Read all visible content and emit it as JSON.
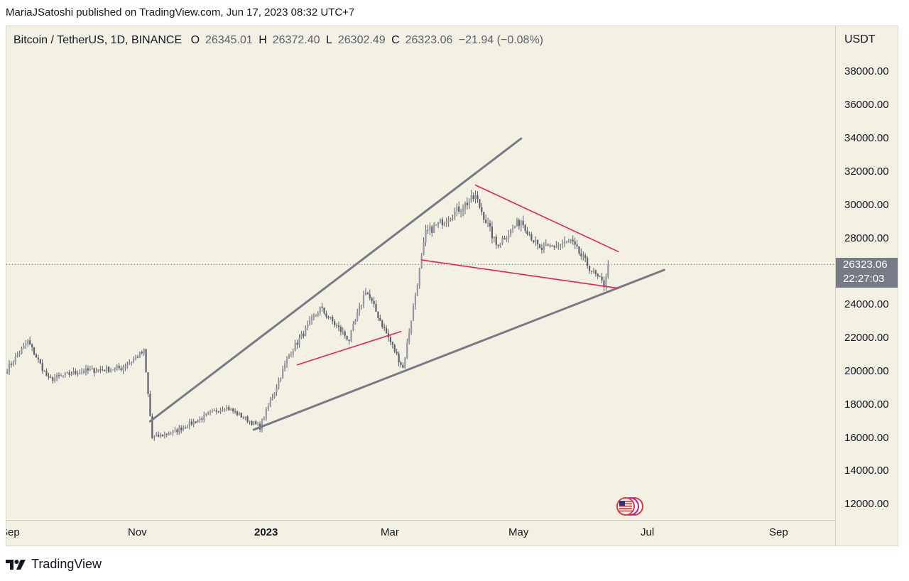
{
  "publisher_line": "MariaJSatoshi published on TradingView.com, Jun 17, 2023 08:32 UTC+7",
  "brand": "TradingView",
  "legend": {
    "symbol": "Bitcoin / TetherUS, 1D, BINANCE",
    "open_key": "O",
    "open": "26345.01",
    "high_key": "H",
    "high": "26372.40",
    "low_key": "L",
    "low": "26302.49",
    "close_key": "C",
    "close": "26323.06",
    "change": "−21.94 (−0.08%)"
  },
  "price_axis": {
    "currency": "USDT",
    "ticks": [
      "38000.00",
      "36000.00",
      "34000.00",
      "32000.00",
      "30000.00",
      "28000.00",
      "24000.00",
      "22000.00",
      "20000.00",
      "18000.00",
      "16000.00",
      "14000.00",
      "12000.00"
    ]
  },
  "last_price": {
    "value": "26323.06",
    "countdown": "22:27:03"
  },
  "time_axis": {
    "ticks": [
      "Sep",
      "Nov",
      "2023",
      "Mar",
      "May",
      "Jul",
      "Sep"
    ]
  },
  "colors": {
    "background": "#f3f0e4",
    "candle": "#5d606b",
    "trendline": "#787b86",
    "pattern_line": "#e91e63",
    "last_price_bg": "#787b86"
  },
  "chart_data": {
    "type": "candlestick",
    "symbol": "Bitcoin / TetherUS",
    "interval": "1D",
    "exchange": "BINANCE",
    "ylim": [
      11500,
      39500
    ],
    "y_unit": "USDT",
    "approx_close_path": [
      {
        "date": "2022-08-31",
        "close": 20050
      },
      {
        "date": "2022-09-10",
        "close": 21700
      },
      {
        "date": "2022-09-20",
        "close": 19400
      },
      {
        "date": "2022-10-05",
        "close": 19900
      },
      {
        "date": "2022-10-25",
        "close": 20100
      },
      {
        "date": "2022-11-05",
        "close": 21100
      },
      {
        "date": "2022-11-09",
        "close": 15900
      },
      {
        "date": "2022-11-20",
        "close": 16300
      },
      {
        "date": "2022-12-14",
        "close": 17800
      },
      {
        "date": "2022-12-31",
        "close": 16550
      },
      {
        "date": "2023-01-14",
        "close": 20900
      },
      {
        "date": "2023-01-29",
        "close": 23700
      },
      {
        "date": "2023-02-12",
        "close": 21800
      },
      {
        "date": "2023-02-20",
        "close": 24800
      },
      {
        "date": "2023-03-10",
        "close": 20100
      },
      {
        "date": "2023-03-21",
        "close": 28200
      },
      {
        "date": "2023-04-14",
        "close": 30400
      },
      {
        "date": "2023-04-24",
        "close": 27500
      },
      {
        "date": "2023-05-06",
        "close": 29000
      },
      {
        "date": "2023-05-15",
        "close": 27200
      },
      {
        "date": "2023-05-30",
        "close": 27700
      },
      {
        "date": "2023-06-10",
        "close": 25800
      },
      {
        "date": "2023-06-15",
        "close": 25100
      },
      {
        "date": "2023-06-17",
        "close": 26323.06
      }
    ],
    "trendlines": [
      {
        "name": "upper channel",
        "color": "#787b86",
        "from": {
          "date": "2022-11-08",
          "price": 16900
        },
        "to": {
          "date": "2023-05-06",
          "price": 33900
        }
      },
      {
        "name": "lower channel",
        "color": "#787b86",
        "from": {
          "date": "2022-12-28",
          "price": 16400
        },
        "to": {
          "date": "2023-07-14",
          "price": 26000
        }
      },
      {
        "name": "flag support 1",
        "color": "#e91e63",
        "from": {
          "date": "2023-01-18",
          "price": 20300
        },
        "to": {
          "date": "2023-03-09",
          "price": 22300
        }
      },
      {
        "name": "wedge top",
        "color": "#e91e63",
        "from": {
          "date": "2023-04-14",
          "price": 31100
        },
        "to": {
          "date": "2023-06-22",
          "price": 27100
        }
      },
      {
        "name": "wedge bottom",
        "color": "#e91e63",
        "from": {
          "date": "2023-03-19",
          "price": 26600
        },
        "to": {
          "date": "2023-06-22",
          "price": 24900
        }
      }
    ]
  }
}
